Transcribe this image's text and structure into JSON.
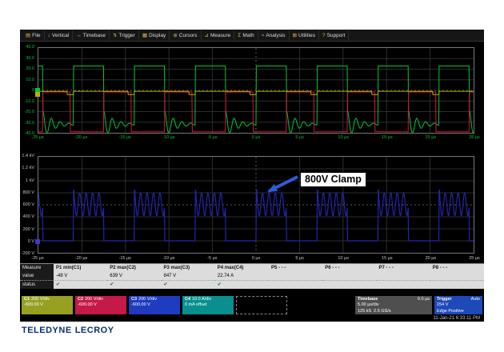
{
  "menu": {
    "items": [
      {
        "label": "File",
        "icon": "file-icon",
        "glyph": "▤"
      },
      {
        "label": "Vertical",
        "icon": "vertical-icon",
        "glyph": "↕"
      },
      {
        "label": "Timebase",
        "icon": "timebase-icon",
        "glyph": "↔"
      },
      {
        "label": "Trigger",
        "icon": "trigger-icon",
        "glyph": "↯"
      },
      {
        "label": "Display",
        "icon": "display-icon",
        "glyph": "▦"
      },
      {
        "label": "Cursors",
        "icon": "cursors-icon",
        "glyph": "⊕"
      },
      {
        "label": "Measure",
        "icon": "measure-icon",
        "glyph": "⊿"
      },
      {
        "label": "Math",
        "icon": "math-icon",
        "glyph": "Σ"
      },
      {
        "label": "Analysis",
        "icon": "analysis-icon",
        "glyph": "≈"
      },
      {
        "label": "Utilities",
        "icon": "utilities-icon",
        "glyph": "⊠"
      },
      {
        "label": "Support",
        "icon": "support-icon",
        "glyph": "?"
      }
    ]
  },
  "chart_data": [
    {
      "type": "line",
      "name": "gate-drive-grid",
      "divisions": {
        "x": 10,
        "y": 8
      },
      "x_range_us": [
        -25,
        25
      ],
      "axis_color": "#00c832",
      "x_ticks": [
        "-25 µs",
        "-20 µs",
        "-15 µs",
        "-10 µs",
        "-5 µs",
        "0 µs",
        "5 µs",
        "10 µs",
        "15 µs",
        "20 µs",
        "25 µs"
      ],
      "y_ticks": [
        "40.0",
        "30.0",
        "20.0",
        "10.0",
        "0",
        "-10.0",
        "-20.0",
        "-30.0",
        "-40.0"
      ],
      "series": [
        {
          "name": "C4-gate-current",
          "color": "#00c832",
          "width": 1,
          "type": "gate",
          "period_us": 7,
          "duty": 0.5,
          "phase_us": 0,
          "high_div": 2.3,
          "low_div": -3.2,
          "ring_amp_div": 1.3,
          "ring_freq_mhz": 1.0,
          "ring_tau_us": 1.2
        },
        {
          "name": "C2-switch-node",
          "color": "#e01040",
          "width": 1,
          "type": "pwm",
          "period_us": 7,
          "duty": 0.45,
          "phase_us": 3.5,
          "high_div": -0.15,
          "low_div": -3.9
        },
        {
          "name": "C1-control",
          "color": "#b4b400",
          "width": 1,
          "type": "pwm",
          "period_us": 7,
          "duty": 0.9,
          "phase_us": 0,
          "high_div": -0.08,
          "low_div": -0.4
        }
      ]
    },
    {
      "type": "line",
      "name": "clamp-grid",
      "divisions": {
        "x": 10,
        "y": 8
      },
      "x_range_us": [
        -25,
        25
      ],
      "axis_color": "#c8c8c8",
      "x_ticks": [
        "-25 µs",
        "-20 µs",
        "-15 µs",
        "-10 µs",
        "-5 µs",
        "0 µs",
        "5 µs",
        "10 µs",
        "15 µs",
        "20 µs",
        "25 µs"
      ],
      "y_ticks": [
        "1.4 kV",
        "1.2 kV",
        "1 kV",
        "800 V",
        "600 V",
        "400 V",
        "200 V",
        "0 V",
        "-200 V"
      ],
      "series": [
        {
          "name": "C3-drain-voltage",
          "color": "#2525a8",
          "width": 1.2,
          "type": "clamp",
          "period_us": 7,
          "duty": 0.5,
          "phase_us": 0,
          "mid_div": 0.05,
          "ripple_div": 0.95,
          "ripple_freq_mhz": 1.35,
          "off_div": -3.0,
          "spike_div": 1.22
        }
      ]
    }
  ],
  "annotation": {
    "text": "800V Clamp",
    "arrow_color": "#2f5bd7"
  },
  "measure": {
    "row_labels": [
      "Measure",
      "value",
      "status"
    ],
    "columns": [
      {
        "header": "P1 min(C1)",
        "value": "-48 V",
        "status": "✔"
      },
      {
        "header": "P2 max(C2)",
        "value": "639 V",
        "status": "✔"
      },
      {
        "header": "P3 max(C3)",
        "value": "847 V",
        "status": "✔"
      },
      {
        "header": "P4 max(C4)",
        "value": "22.74 A",
        "status": "✔"
      },
      {
        "header": "P5 - - -",
        "value": "",
        "status": ""
      },
      {
        "header": "P6 - - -",
        "value": "",
        "status": ""
      },
      {
        "header": "P7 - - -",
        "value": "",
        "status": ""
      },
      {
        "header": "P8 - - -",
        "value": "",
        "status": ""
      }
    ]
  },
  "channels": [
    {
      "id": "C1",
      "line1": "200 V/div",
      "line2": "-600.00 V",
      "color": "#97a021"
    },
    {
      "id": "C2",
      "line1": "200 V/div",
      "line2": "-600.00 V",
      "color": "#c41949"
    },
    {
      "id": "C3",
      "line1": "200 V/div",
      "line2": "-600.00 V",
      "color": "#1f3bbf"
    },
    {
      "id": "C4",
      "line1": "10.0 A/div",
      "line2": "0 mA offset",
      "color": "#0a8f8f"
    }
  ],
  "timebase": {
    "label": "Timebase",
    "position": "0.0 µs",
    "scale": "5.00 µs/div",
    "samples": "125 kS",
    "rate": "2.5 GS/s"
  },
  "trigger": {
    "label": "Trigger",
    "mode": "Auto",
    "level": "154 V",
    "type": "Edge",
    "slope": "Positive"
  },
  "footer": {
    "brand_1": "TELEDYNE",
    "brand_2": "LECROY",
    "timestamp": "11-Jan-21 6:33:11 PM"
  }
}
